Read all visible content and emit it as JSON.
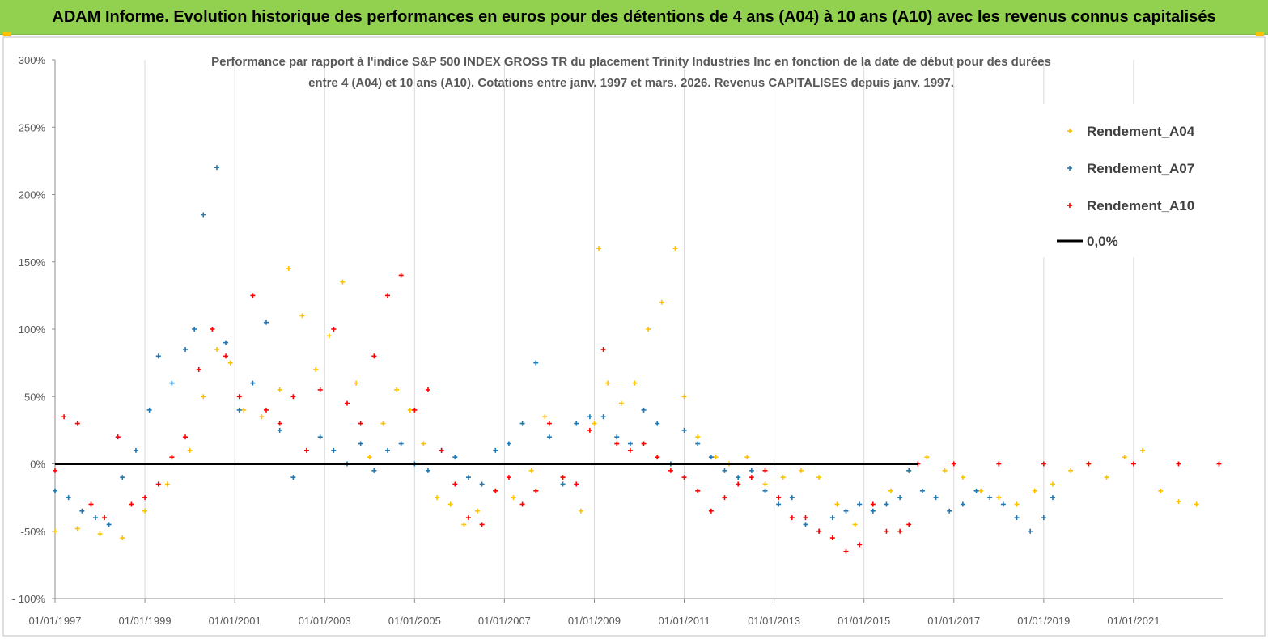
{
  "banner": {
    "title": "ADAM Informe. Evolution historique des performances en euros pour des détentions de 4 ans (A04) à 10 ans (A10) avec les revenus connus capitalisés",
    "color": "#92d050"
  },
  "chart_data": {
    "type": "scatter",
    "title_line1": "Performance par rapport à l'indice S&P 500 INDEX GROSS TR  du placement Trinity Industries Inc en fonction de la date de début pour des durées",
    "title_line2": "entre 4 (A04) et 10 ans (A10). Cotations entre janv. 1997 et mars. 2026. Revenus CAPITALISES depuis janv. 1997.",
    "xlabel": "",
    "ylabel": "",
    "xlim": [
      "1997-01-01",
      "2023-01-01"
    ],
    "ylim": [
      -1.0,
      3.0
    ],
    "x_tick_labels": [
      "01/01/1997",
      "01/01/1999",
      "01/01/2001",
      "01/01/2003",
      "01/01/2005",
      "01/01/2007",
      "01/01/2009",
      "01/01/2011",
      "01/01/2013",
      "01/01/2015",
      "01/01/2017",
      "01/01/2019",
      "01/01/2021"
    ],
    "x_tick_years": [
      1997,
      1999,
      2001,
      2003,
      2005,
      2007,
      2009,
      2011,
      2013,
      2015,
      2017,
      2019,
      2021
    ],
    "y_ticks": [
      -1.0,
      -0.5,
      0.0,
      0.5,
      1.0,
      1.5,
      2.0,
      2.5,
      3.0
    ],
    "y_tick_labels": [
      "- 100%",
      "-50%",
      "0%",
      "50%",
      "100%",
      "150%",
      "200%",
      "250%",
      "300%"
    ],
    "grid": "vertical at x ticks",
    "legend_position": "top-right",
    "legend": [
      "Rendement_A04",
      "Rendement_A07",
      "Rendement_A10",
      "0,0%"
    ],
    "series": [
      {
        "name": "Rendement_A04",
        "color": "#ffc000",
        "marker": "plus",
        "x": [
          1997.0,
          1997.5,
          1998.0,
          1998.5,
          1999.0,
          1999.5,
          2000.0,
          2000.3,
          2000.6,
          2000.9,
          2001.2,
          2001.6,
          2002.0,
          2002.2,
          2002.5,
          2002.8,
          2003.1,
          2003.4,
          2003.7,
          2004.0,
          2004.3,
          2004.6,
          2004.9,
          2005.2,
          2005.5,
          2005.8,
          2006.1,
          2006.4,
          2006.8,
          2007.2,
          2007.6,
          2007.9,
          2008.3,
          2008.7,
          2009.0,
          2009.1,
          2009.3,
          2009.6,
          2009.9,
          2010.2,
          2010.5,
          2010.8,
          2011.0,
          2011.3,
          2011.7,
          2012.0,
          2012.4,
          2012.8,
          2013.2,
          2013.6,
          2014.0,
          2014.4,
          2014.8,
          2015.2,
          2015.6,
          2016.0,
          2016.4,
          2016.8,
          2017.2,
          2017.6,
          2018.0,
          2018.4,
          2018.8,
          2019.2,
          2019.6,
          2020.0,
          2020.4,
          2020.8,
          2021.2,
          2021.6,
          2022.0,
          2022.4
        ],
        "y": [
          -0.5,
          -0.48,
          -0.52,
          -0.55,
          -0.35,
          -0.15,
          0.1,
          0.5,
          0.85,
          0.75,
          0.4,
          0.35,
          0.55,
          1.45,
          1.1,
          0.7,
          0.95,
          1.35,
          0.6,
          0.05,
          0.3,
          0.55,
          0.4,
          0.15,
          -0.25,
          -0.3,
          -0.45,
          -0.35,
          -0.2,
          -0.25,
          -0.05,
          0.35,
          -0.1,
          -0.35,
          0.3,
          1.6,
          0.6,
          0.45,
          0.6,
          1.0,
          1.2,
          1.6,
          0.5,
          0.2,
          0.05,
          0.0,
          0.05,
          -0.15,
          -0.1,
          -0.05,
          -0.1,
          -0.3,
          -0.45,
          -0.35,
          -0.2,
          -0.05,
          0.05,
          -0.05,
          -0.1,
          -0.2,
          -0.25,
          -0.3,
          -0.2,
          -0.15,
          -0.05,
          0.0,
          -0.1,
          0.05,
          0.1,
          -0.2,
          -0.28,
          -0.3
        ]
      },
      {
        "name": "Rendement_A07",
        "color": "#1f77b4",
        "marker": "plus",
        "x": [
          1997.0,
          1997.3,
          1997.6,
          1997.9,
          1998.2,
          1998.5,
          1998.8,
          1999.1,
          1999.3,
          1999.6,
          1999.9,
          2000.1,
          2000.3,
          2000.6,
          2000.8,
          2001.1,
          2001.4,
          2001.7,
          2002.0,
          2002.3,
          2002.6,
          2002.9,
          2003.2,
          2003.5,
          2003.8,
          2004.1,
          2004.4,
          2004.7,
          2005.0,
          2005.3,
          2005.6,
          2005.9,
          2006.2,
          2006.5,
          2006.8,
          2007.1,
          2007.4,
          2007.7,
          2008.0,
          2008.3,
          2008.6,
          2008.9,
          2009.2,
          2009.5,
          2009.8,
          2010.1,
          2010.4,
          2010.7,
          2011.0,
          2011.3,
          2011.6,
          2011.9,
          2012.2,
          2012.5,
          2012.8,
          2013.1,
          2013.4,
          2013.7,
          2014.0,
          2014.3,
          2014.6,
          2014.9,
          2015.2,
          2015.5,
          2015.8,
          2016.0,
          2016.3,
          2016.6,
          2016.9,
          2017.2,
          2017.5,
          2017.8,
          2018.1,
          2018.4,
          2018.7,
          2019.0,
          2019.2
        ],
        "y": [
          -0.2,
          -0.25,
          -0.35,
          -0.4,
          -0.45,
          -0.1,
          0.1,
          0.4,
          0.8,
          0.6,
          0.85,
          1.0,
          1.85,
          2.2,
          0.9,
          0.4,
          0.6,
          1.05,
          0.25,
          -0.1,
          0.1,
          0.2,
          0.1,
          0.0,
          0.15,
          -0.05,
          0.1,
          0.15,
          0.0,
          -0.05,
          0.1,
          0.05,
          -0.1,
          -0.15,
          0.1,
          0.15,
          0.3,
          0.75,
          0.2,
          -0.15,
          0.3,
          0.35,
          0.35,
          0.2,
          0.15,
          0.4,
          0.3,
          0.0,
          0.25,
          0.15,
          0.05,
          -0.05,
          -0.1,
          -0.05,
          -0.2,
          -0.3,
          -0.25,
          -0.45,
          -0.5,
          -0.4,
          -0.35,
          -0.3,
          -0.35,
          -0.3,
          -0.25,
          -0.05,
          -0.2,
          -0.25,
          -0.35,
          -0.3,
          -0.2,
          -0.25,
          -0.3,
          -0.4,
          -0.5,
          -0.4,
          -0.25
        ]
      },
      {
        "name": "Rendement_A10",
        "color": "#ff0000",
        "marker": "plus",
        "x": [
          1997.0,
          1997.2,
          1997.5,
          1997.8,
          1998.1,
          1998.4,
          1998.7,
          1999.0,
          1999.3,
          1999.6,
          1999.9,
          2000.2,
          2000.5,
          2000.8,
          2001.1,
          2001.4,
          2001.7,
          2002.0,
          2002.3,
          2002.6,
          2002.9,
          2003.2,
          2003.5,
          2003.8,
          2004.1,
          2004.4,
          2004.7,
          2005.0,
          2005.3,
          2005.6,
          2005.9,
          2006.2,
          2006.5,
          2006.8,
          2007.1,
          2007.4,
          2007.7,
          2008.0,
          2008.3,
          2008.6,
          2008.9,
          2009.2,
          2009.5,
          2009.8,
          2010.1,
          2010.4,
          2010.7,
          2011.0,
          2011.3,
          2011.6,
          2011.9,
          2012.2,
          2012.5,
          2012.8,
          2013.1,
          2013.4,
          2013.7,
          2014.0,
          2014.3,
          2014.6,
          2014.9,
          2015.2,
          2015.5,
          2015.8,
          2016.0,
          2016.2,
          2017.0,
          2018.0,
          2019.0,
          2020.0,
          2021.0,
          2022.0,
          2022.9
        ],
        "y": [
          -0.05,
          0.35,
          0.3,
          -0.3,
          -0.4,
          0.2,
          -0.3,
          -0.25,
          -0.15,
          0.05,
          0.2,
          0.7,
          1.0,
          0.8,
          0.5,
          1.25,
          0.4,
          0.3,
          0.5,
          0.1,
          0.55,
          1.0,
          0.45,
          0.3,
          0.8,
          1.25,
          1.4,
          0.4,
          0.55,
          0.1,
          -0.15,
          -0.4,
          -0.45,
          -0.2,
          -0.1,
          -0.3,
          -0.2,
          0.3,
          -0.1,
          -0.15,
          0.25,
          0.85,
          0.15,
          0.1,
          0.15,
          0.05,
          -0.05,
          -0.1,
          -0.2,
          -0.35,
          -0.25,
          -0.15,
          -0.1,
          -0.05,
          -0.25,
          -0.4,
          -0.4,
          -0.5,
          -0.55,
          -0.65,
          -0.6,
          -0.3,
          -0.5,
          -0.5,
          -0.45,
          0.0,
          0.0,
          0.0,
          0.0,
          0.0,
          0.0,
          0.0,
          0.0
        ]
      },
      {
        "name": "0,0%",
        "color": "#000000",
        "marker": "line",
        "x": [
          1997.0,
          2016.2
        ],
        "y": [
          0.0,
          0.0
        ]
      }
    ]
  }
}
